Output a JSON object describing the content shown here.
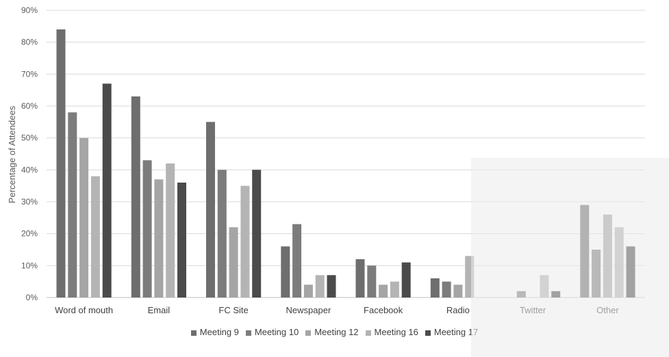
{
  "chart_data": {
    "type": "bar",
    "categories": [
      "Word of mouth",
      "Email",
      "FC Site",
      "Newspaper",
      "Facebook",
      "Radio",
      "Twitter",
      "Other"
    ],
    "series": [
      {
        "name": "Meeting 9",
        "color": "#6e6e6e",
        "values": [
          84,
          63,
          55,
          16,
          12,
          6,
          0,
          29
        ]
      },
      {
        "name": "Meeting 10",
        "color": "#7c7c7c",
        "values": [
          58,
          43,
          40,
          23,
          10,
          5,
          2,
          15
        ]
      },
      {
        "name": "Meeting 12",
        "color": "#a5a5a5",
        "values": [
          50,
          37,
          22,
          4,
          4,
          4,
          0,
          26
        ]
      },
      {
        "name": "Meeting 16",
        "color": "#b4b4b4",
        "values": [
          38,
          42,
          35,
          7,
          5,
          13,
          7,
          22
        ]
      },
      {
        "name": "Meeting 17",
        "color": "#4b4b4b",
        "values": [
          67,
          36,
          40,
          7,
          11,
          0,
          2,
          16
        ]
      }
    ],
    "y_ticks": [
      "0%",
      "10%",
      "20%",
      "30%",
      "40%",
      "50%",
      "60%",
      "70%",
      "80%",
      "90%"
    ],
    "ylabel": "Percentage of Attendees",
    "xlabel": "",
    "ylim": [
      0,
      90
    ],
    "grid": true,
    "legend_position": "bottom"
  }
}
